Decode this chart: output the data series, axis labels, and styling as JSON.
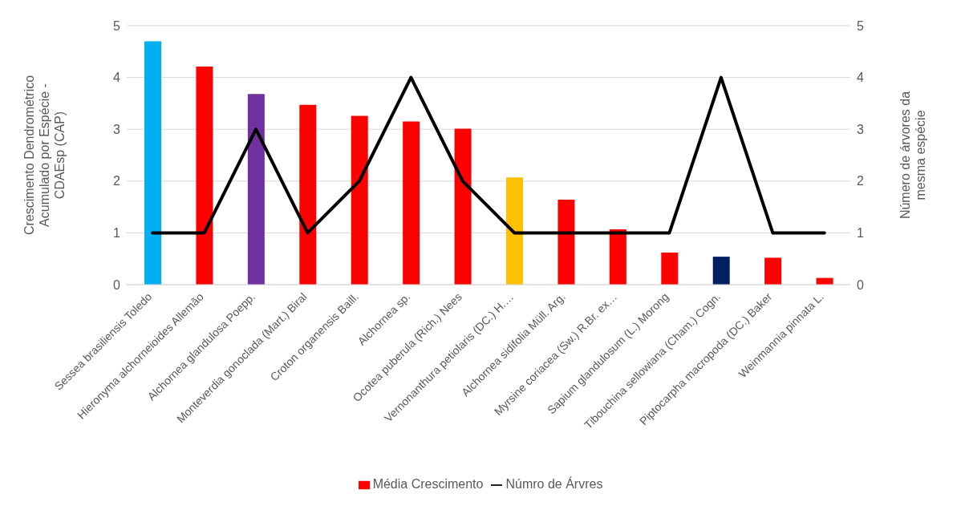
{
  "chart_data": {
    "type": "bar",
    "ylabel": "Crescimento Dendrométrico Acumulado por Espécie - CDAEsp (CAP)",
    "y2label": "Número de árvores da mesma espécie",
    "categories": [
      "Sessea brasiliensis Toledo",
      "Hieronyma alchorneioides Allemão",
      "Alchornea glandulosa Poepp.",
      "Monteverdia gonoclada (Mart.) Biral",
      "Croton organensis Baill.",
      "Alchornea sp.",
      "Ocotea puberula (Rich.) Nees",
      "Vernonanthura petiolaris (DC.) H.…",
      "Alchornea sidifolia Müll. Arg.",
      "Myrsine coriacea (Sw.) R.Br. ex…",
      "Sapium glandulosum (L.) Morong",
      "Tibouchina sellowiana (Cham.) Cogn.",
      "Piptocarpha macropoda (DC.) Baker",
      "Weinmannia pinnata L."
    ],
    "series": [
      {
        "name": "Média Crescimento",
        "color": "#ff0000",
        "colors": [
          "#00b0f0",
          "#ff0000",
          "#7030a0",
          "#ff0000",
          "#ff0000",
          "#ff0000",
          "#ff0000",
          "#ffc000",
          "#ff0000",
          "#ff0000",
          "#ff0000",
          "#002060",
          "#ff0000",
          "#ff0000"
        ],
        "values": [
          4.7,
          4.21,
          3.68,
          3.47,
          3.26,
          3.15,
          3.01,
          2.07,
          1.64,
          1.07,
          0.62,
          0.54,
          0.52,
          0.13
        ]
      },
      {
        "name": "Númro de Árvres",
        "type": "line",
        "axis": "y2",
        "color": "#000000",
        "values": [
          1,
          1,
          3,
          1,
          2,
          4,
          2,
          1,
          1,
          1,
          1,
          4,
          1,
          1
        ]
      }
    ],
    "ylim": [
      0,
      5
    ],
    "yticks": [
      0,
      1,
      2,
      3,
      4,
      5
    ],
    "y2lim": [
      0,
      5
    ],
    "y2ticks": [
      0,
      1,
      2,
      3,
      4,
      5
    ],
    "grid": "y",
    "legend": "bottom",
    "marker": "none",
    "line_style": "solid"
  }
}
